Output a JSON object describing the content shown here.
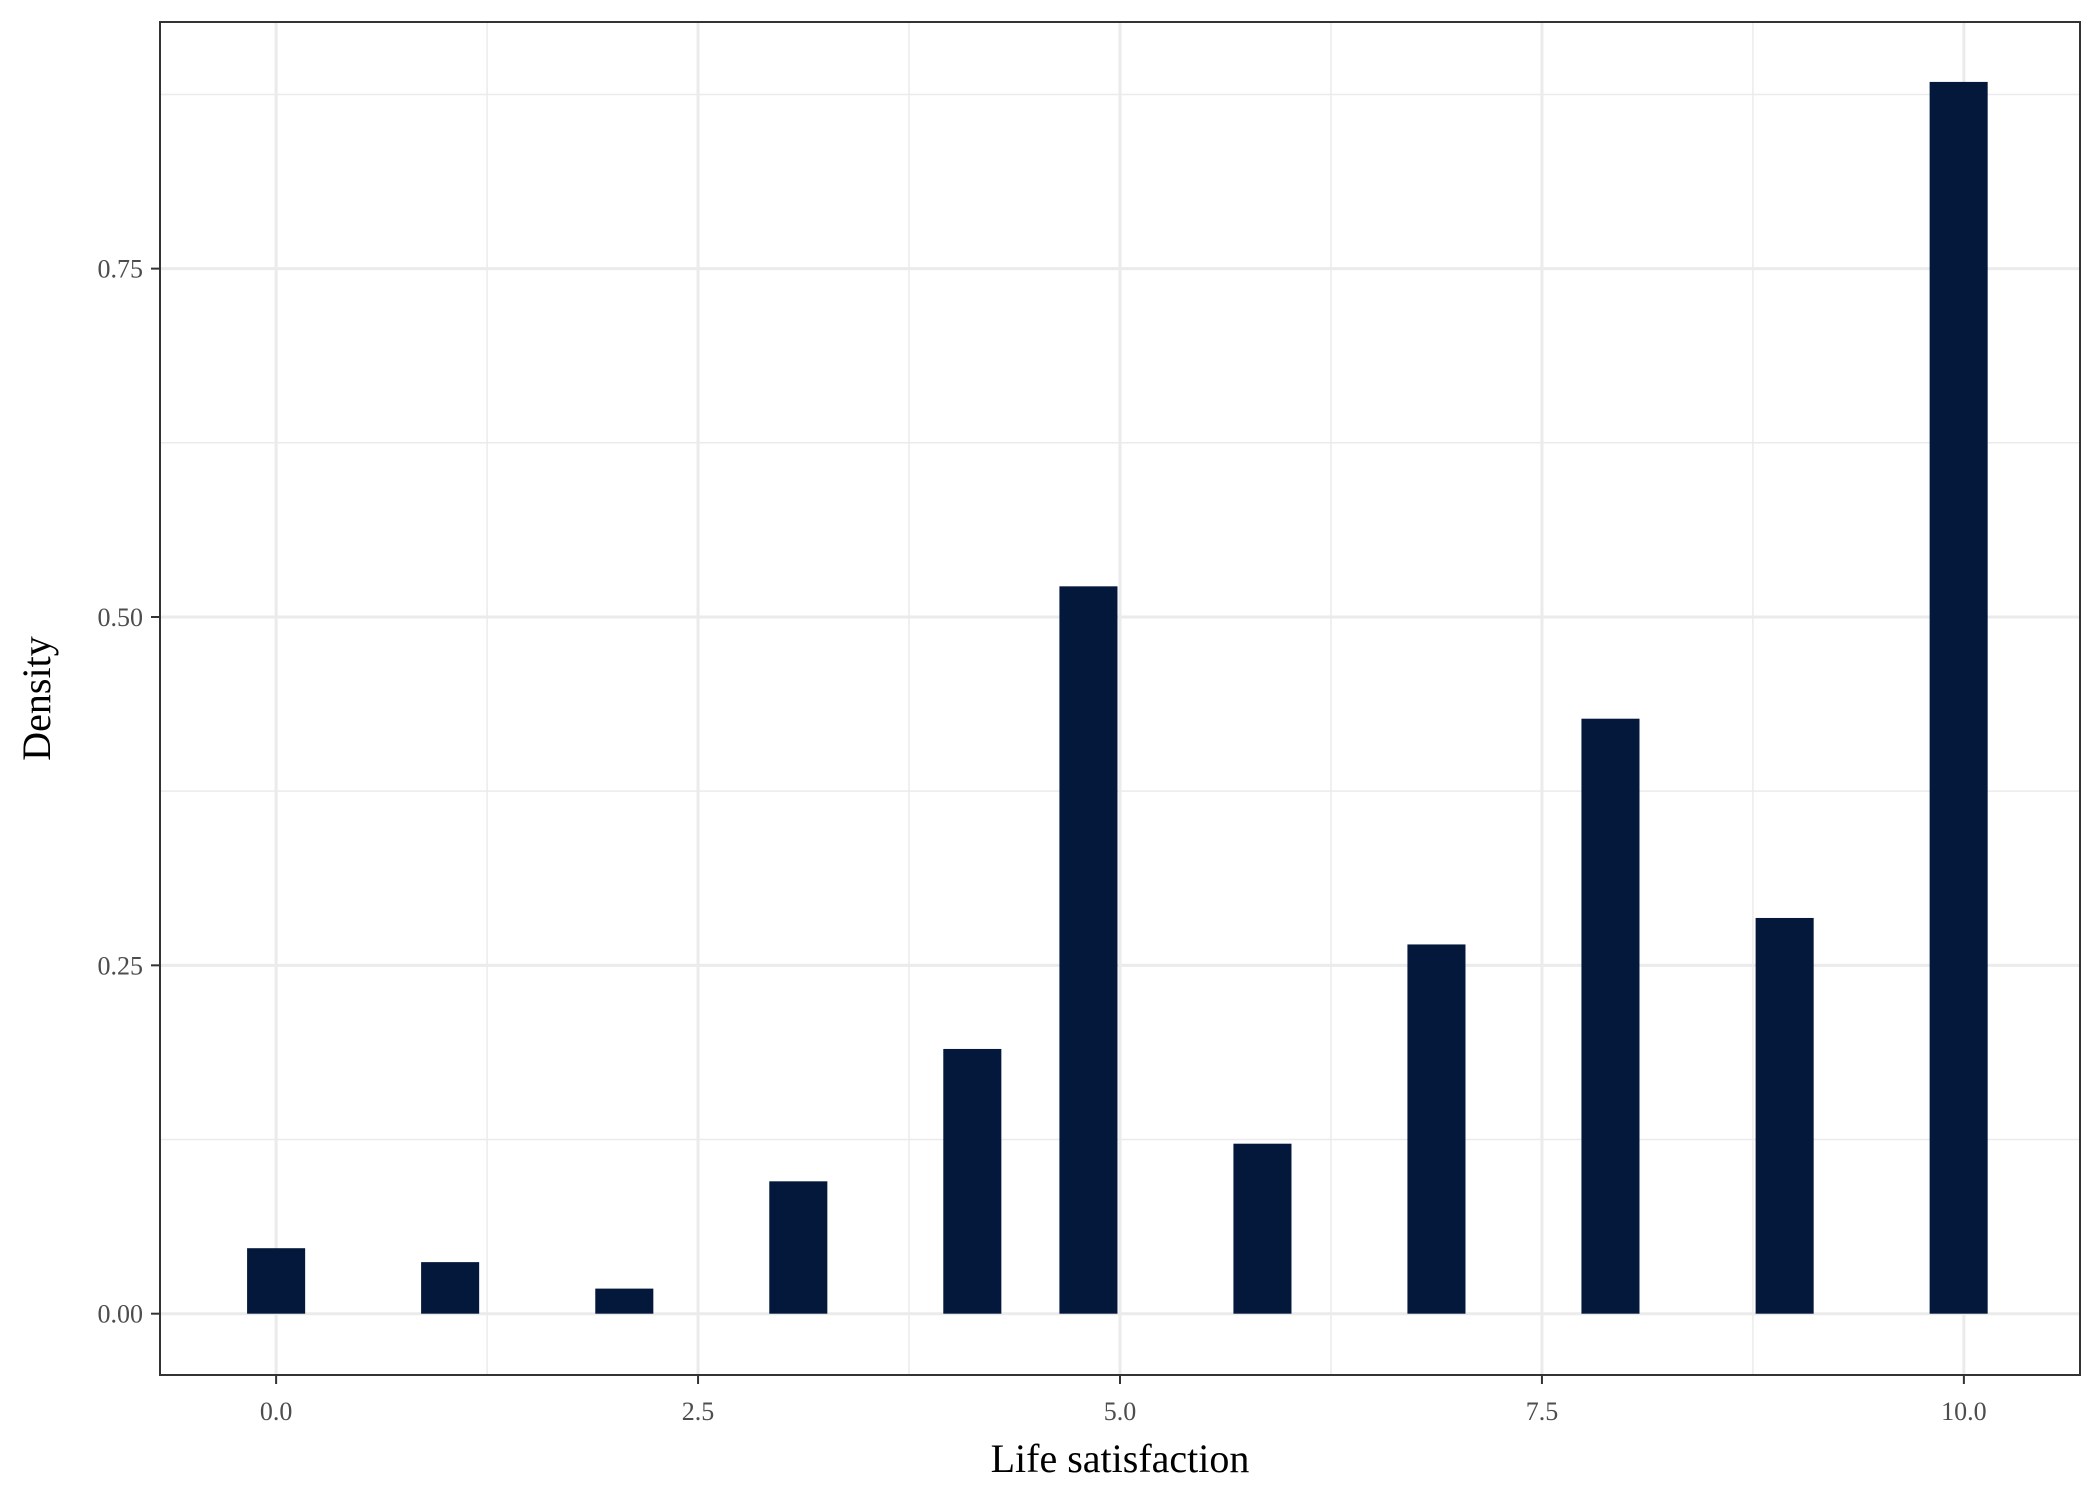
{
  "chart_data": {
    "type": "bar",
    "title": "",
    "xlabel": "Life satisfaction",
    "ylabel": "Density",
    "xlim": [
      -0.688,
      10.688
    ],
    "ylim": [
      -0.044,
      0.927
    ],
    "x_ticks": [
      {
        "value": 0.0,
        "label": "0.0"
      },
      {
        "value": 2.5,
        "label": "2.5"
      },
      {
        "value": 5.0,
        "label": "5.0"
      },
      {
        "value": 7.5,
        "label": "7.5"
      },
      {
        "value": 10.0,
        "label": "10.0"
      }
    ],
    "y_ticks": [
      {
        "value": 0.0,
        "label": "0.00"
      },
      {
        "value": 0.25,
        "label": "0.25"
      },
      {
        "value": 0.5,
        "label": "0.50"
      },
      {
        "value": 0.75,
        "label": "0.75"
      }
    ],
    "x_minor": [
      1.25,
      3.75,
      6.25,
      8.75
    ],
    "y_minor": [
      0.125,
      0.375,
      0.625,
      0.875
    ],
    "bar_width": 0.344,
    "bars": [
      {
        "x": 0.0,
        "y": 0.047
      },
      {
        "x": 1.031,
        "y": 0.037
      },
      {
        "x": 2.063,
        "y": 0.018
      },
      {
        "x": 3.094,
        "y": 0.095
      },
      {
        "x": 4.125,
        "y": 0.19
      },
      {
        "x": 4.813,
        "y": 0.522
      },
      {
        "x": 5.844,
        "y": 0.122
      },
      {
        "x": 6.875,
        "y": 0.265
      },
      {
        "x": 7.906,
        "y": 0.427
      },
      {
        "x": 8.938,
        "y": 0.284
      },
      {
        "x": 9.969,
        "y": 0.884
      }
    ],
    "grid": true,
    "colors": {
      "bar": "#03183b",
      "grid": "#ebebeb",
      "border": "#333333",
      "tick": "#333333"
    }
  }
}
